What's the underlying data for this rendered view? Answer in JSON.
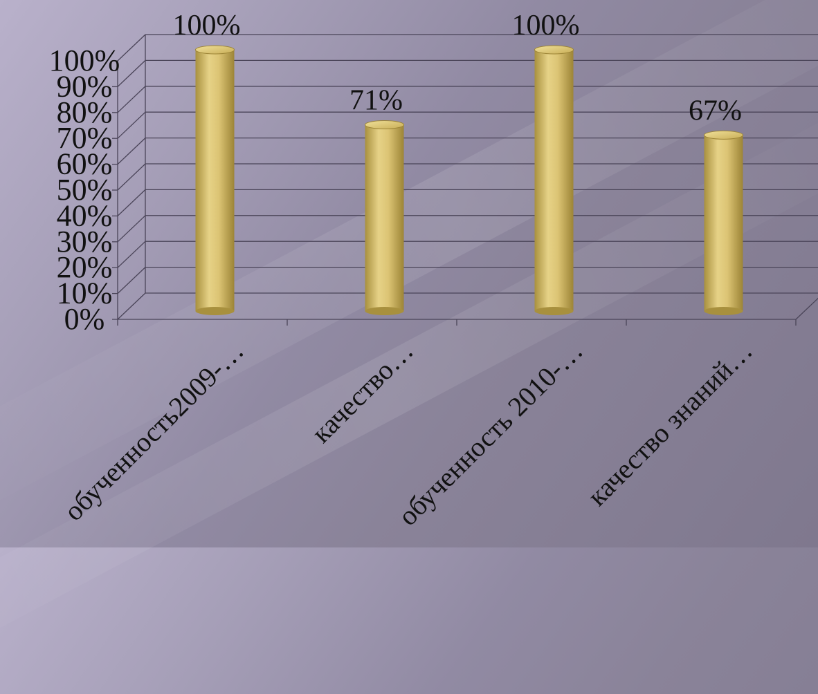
{
  "chart_data": {
    "type": "bar",
    "categories": [
      "обученность2009-…",
      "качество…",
      "обученность 2010-…",
      "качество знаний…"
    ],
    "values": [
      100,
      71,
      100,
      67
    ],
    "data_labels": [
      "100%",
      "71%",
      "100%",
      "67%"
    ],
    "yticks": [
      "0%",
      "10%",
      "20%",
      "30%",
      "40%",
      "50%",
      "60%",
      "70%",
      "80%",
      "90%",
      "100%"
    ],
    "ylim": [
      0,
      100
    ],
    "grid": true,
    "bar_color": "#d8c06a"
  }
}
